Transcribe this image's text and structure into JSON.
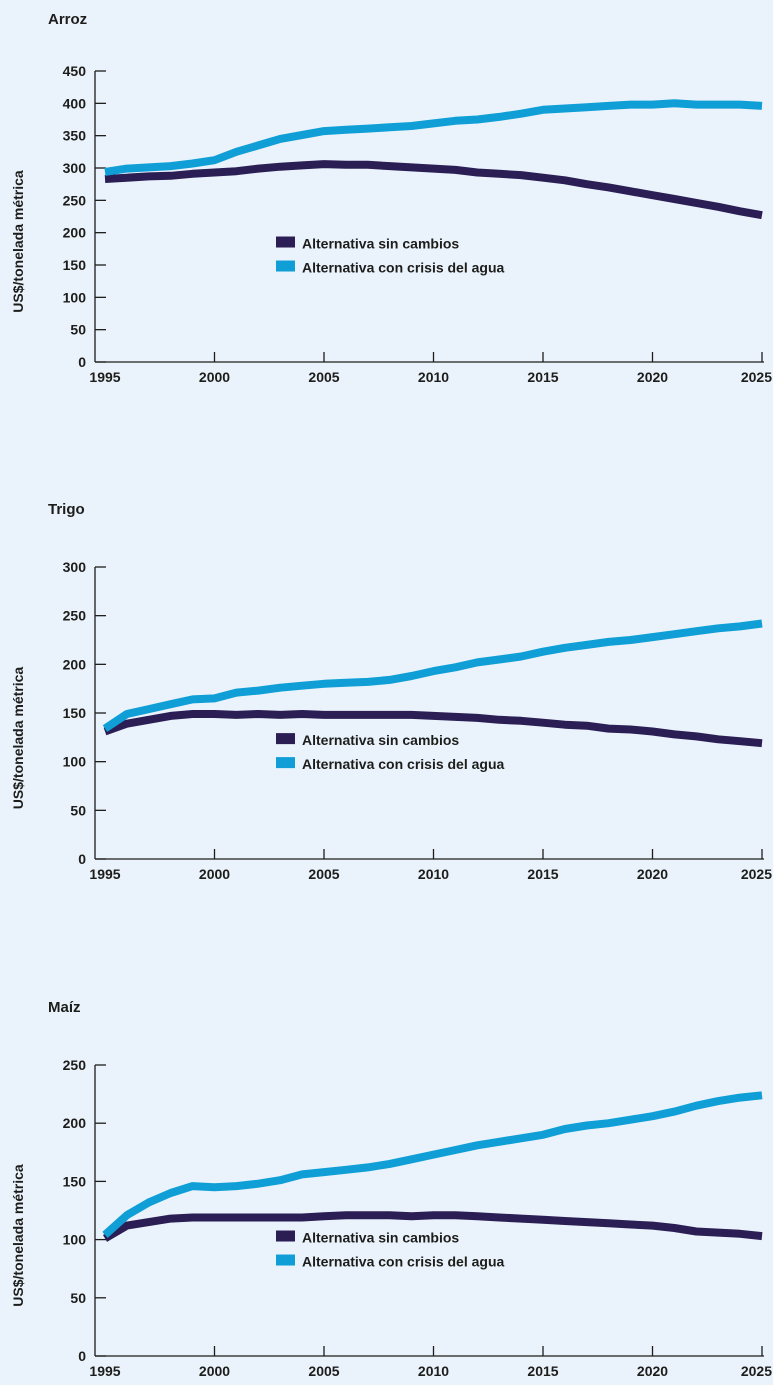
{
  "colors": {
    "sin_cambios": "#2b1e55",
    "crisis_agua": "#0f9fd6"
  },
  "chart_data": [
    {
      "type": "line",
      "title": "Arroz",
      "ylabel": "US$/tonelada métrica",
      "xlabel": "",
      "xlim": [
        1995,
        2025
      ],
      "ylim": [
        0,
        450
      ],
      "xticks": [
        1995,
        2000,
        2005,
        2010,
        2015,
        2020,
        2025
      ],
      "yticks": [
        0,
        50,
        100,
        150,
        200,
        250,
        300,
        350,
        400,
        450
      ],
      "x": [
        1995,
        1996,
        1997,
        1998,
        1999,
        2000,
        2001,
        2002,
        2003,
        2004,
        2005,
        2006,
        2007,
        2008,
        2009,
        2010,
        2011,
        2012,
        2013,
        2014,
        2015,
        2016,
        2017,
        2018,
        2019,
        2020,
        2021,
        2022,
        2023,
        2024,
        2025
      ],
      "series": [
        {
          "name": "Alternativa sin cambios",
          "color_key": "sin_cambios",
          "values": [
            283,
            285,
            287,
            288,
            291,
            293,
            295,
            299,
            302,
            304,
            306,
            305,
            305,
            303,
            301,
            299,
            297,
            293,
            291,
            289,
            285,
            281,
            275,
            270,
            264,
            258,
            252,
            246,
            240,
            233,
            227
          ]
        },
        {
          "name": "Alternativa con crisis del agua",
          "color_key": "crisis_agua",
          "values": [
            294,
            299,
            301,
            303,
            307,
            312,
            325,
            335,
            345,
            351,
            357,
            359,
            361,
            363,
            365,
            369,
            373,
            375,
            379,
            384,
            390,
            392,
            394,
            396,
            398,
            398,
            400,
            398,
            398,
            398,
            396
          ]
        }
      ],
      "legend": [
        "Alternativa sin cambios",
        "Alternativa con crisis del agua"
      ],
      "legend_position": "center"
    },
    {
      "type": "line",
      "title": "Trigo",
      "ylabel": "US$/tonelada métrica",
      "xlabel": "",
      "xlim": [
        1995,
        2025
      ],
      "ylim": [
        0,
        300
      ],
      "xticks": [
        1995,
        2000,
        2005,
        2010,
        2015,
        2020,
        2025
      ],
      "yticks": [
        0,
        50,
        100,
        150,
        200,
        250,
        300
      ],
      "x": [
        1995,
        1996,
        1997,
        1998,
        1999,
        2000,
        2001,
        2002,
        2003,
        2004,
        2005,
        2006,
        2007,
        2008,
        2009,
        2010,
        2011,
        2012,
        2013,
        2014,
        2015,
        2016,
        2017,
        2018,
        2019,
        2020,
        2021,
        2022,
        2023,
        2024,
        2025
      ],
      "series": [
        {
          "name": "Alternativa sin cambios",
          "color_key": "sin_cambios",
          "values": [
            131,
            139,
            143,
            147,
            149,
            149,
            148,
            149,
            148,
            149,
            148,
            148,
            148,
            148,
            148,
            147,
            146,
            145,
            143,
            142,
            140,
            138,
            137,
            134,
            133,
            131,
            128,
            126,
            123,
            121,
            119
          ]
        },
        {
          "name": "Alternativa con crisis del agua",
          "color_key": "crisis_agua",
          "values": [
            134,
            149,
            154,
            159,
            164,
            165,
            171,
            173,
            176,
            178,
            180,
            181,
            182,
            184,
            188,
            193,
            197,
            202,
            205,
            208,
            213,
            217,
            220,
            223,
            225,
            228,
            231,
            234,
            237,
            239,
            242
          ]
        }
      ],
      "legend": [
        "Alternativa sin cambios",
        "Alternativa con crisis del agua"
      ],
      "legend_position": "center"
    },
    {
      "type": "line",
      "title": "Maíz",
      "ylabel": "US$/tonelada métrica",
      "xlabel": "",
      "xlim": [
        1995,
        2025
      ],
      "ylim": [
        0,
        250
      ],
      "xticks": [
        1995,
        2000,
        2005,
        2010,
        2015,
        2020,
        2025
      ],
      "yticks": [
        0,
        50,
        100,
        150,
        200,
        250
      ],
      "x": [
        1995,
        1996,
        1997,
        1998,
        1999,
        2000,
        2001,
        2002,
        2003,
        2004,
        2005,
        2006,
        2007,
        2008,
        2009,
        2010,
        2011,
        2012,
        2013,
        2014,
        2015,
        2016,
        2017,
        2018,
        2019,
        2020,
        2021,
        2022,
        2023,
        2024,
        2025
      ],
      "series": [
        {
          "name": "Alternativa sin cambios",
          "color_key": "sin_cambios",
          "values": [
            101,
            112,
            115,
            118,
            119,
            119,
            119,
            119,
            119,
            119,
            120,
            121,
            121,
            121,
            120,
            121,
            121,
            120,
            119,
            118,
            117,
            116,
            115,
            114,
            113,
            112,
            110,
            107,
            106,
            105,
            103
          ]
        },
        {
          "name": "Alternativa con crisis del agua",
          "color_key": "crisis_agua",
          "values": [
            104,
            121,
            132,
            140,
            146,
            145,
            146,
            148,
            151,
            156,
            158,
            160,
            162,
            165,
            169,
            173,
            177,
            181,
            184,
            187,
            190,
            195,
            198,
            200,
            203,
            206,
            210,
            215,
            219,
            222,
            224
          ]
        }
      ],
      "legend": [
        "Alternativa sin cambios",
        "Alternativa con crisis del agua"
      ],
      "legend_position": "center"
    }
  ]
}
